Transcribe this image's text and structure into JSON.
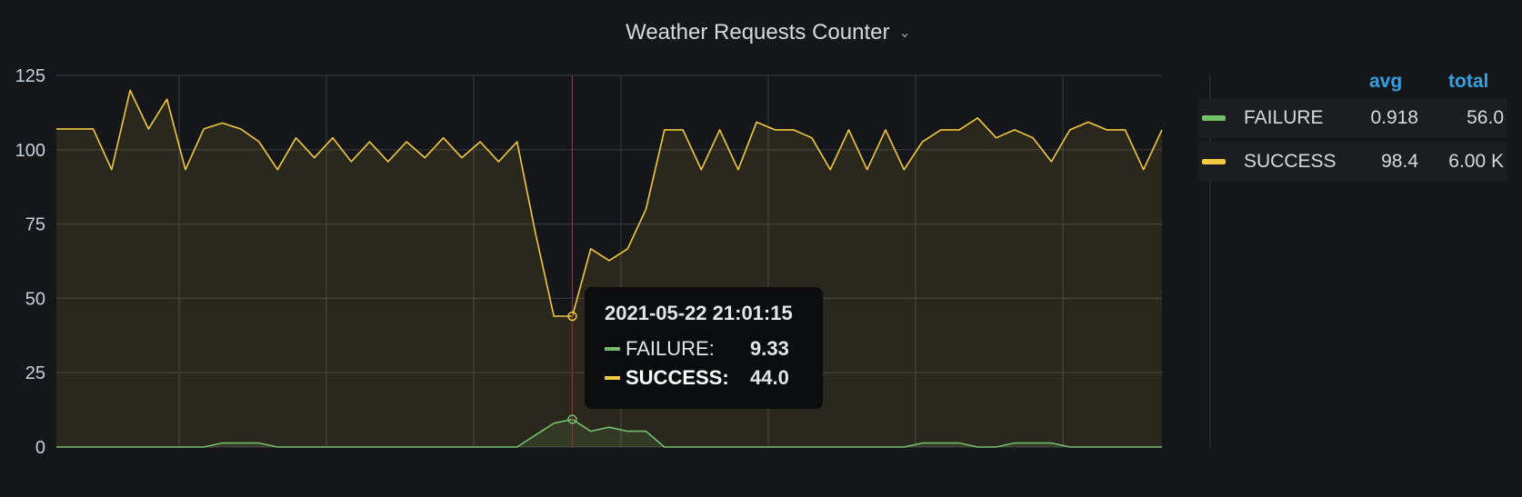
{
  "panel": {
    "title": "Weather Requests Counter",
    "menu_icon": "chevron-down-icon"
  },
  "colors": {
    "failure": "#73bf69",
    "success": "#f2c93f",
    "hover_line": "#c4162a",
    "grid": "#2f3136",
    "background": "#141619"
  },
  "legend": {
    "avg_header": "avg",
    "total_header": "total",
    "series": [
      {
        "name": "FAILURE",
        "avg": "0.918",
        "total": "56.0"
      },
      {
        "name": "SUCCESS",
        "avg": "98.4",
        "total": "6.00 K"
      }
    ]
  },
  "tooltip": {
    "time": "2021-05-22 21:01:15",
    "rows": [
      {
        "label": "FAILURE:",
        "value": "9.33"
      },
      {
        "label": "SUCCESS:",
        "value": "44.0"
      }
    ]
  },
  "chart_data": {
    "type": "area",
    "title": "Weather Requests Counter",
    "ylim": [
      0,
      125
    ],
    "yticks": [
      0,
      25,
      50,
      75,
      100,
      125
    ],
    "y_tick_labels": [
      "0",
      "25",
      "50",
      "75",
      "100",
      "125"
    ],
    "hover_index": 28,
    "series": [
      {
        "name": "FAILURE",
        "values": [
          0,
          0,
          0,
          0,
          0,
          0,
          0,
          0,
          0,
          1.33,
          1.33,
          1.33,
          0,
          0,
          0,
          0,
          0,
          0,
          0,
          0,
          0,
          0,
          0,
          0,
          0,
          0,
          4,
          8,
          9.33,
          5.33,
          6.67,
          5.33,
          5.33,
          0,
          0,
          0,
          0,
          0,
          0,
          0,
          0,
          0,
          0,
          0,
          0,
          0,
          0,
          1.33,
          1.33,
          1.33,
          0,
          0,
          1.33,
          1.33,
          1.33,
          0,
          0,
          0,
          0,
          0,
          0
        ]
      },
      {
        "name": "SUCCESS",
        "values": [
          107,
          107,
          107,
          93.3,
          120,
          107,
          117,
          93.3,
          107,
          109,
          107,
          102.7,
          93.3,
          104,
          97.3,
          104,
          96,
          102.7,
          96,
          102.7,
          97.3,
          104,
          97.3,
          102.7,
          96,
          102.7,
          72,
          44,
          44,
          66.7,
          62.7,
          66.7,
          80,
          106.7,
          106.7,
          93.3,
          106.7,
          93.3,
          109.3,
          106.7,
          106.7,
          104,
          93.3,
          106.7,
          93.3,
          106.7,
          93.3,
          102.7,
          106.7,
          106.7,
          110.7,
          104,
          106.7,
          104,
          96,
          106.7,
          109.3,
          106.7,
          106.7,
          93.3,
          106.7
        ]
      }
    ]
  }
}
